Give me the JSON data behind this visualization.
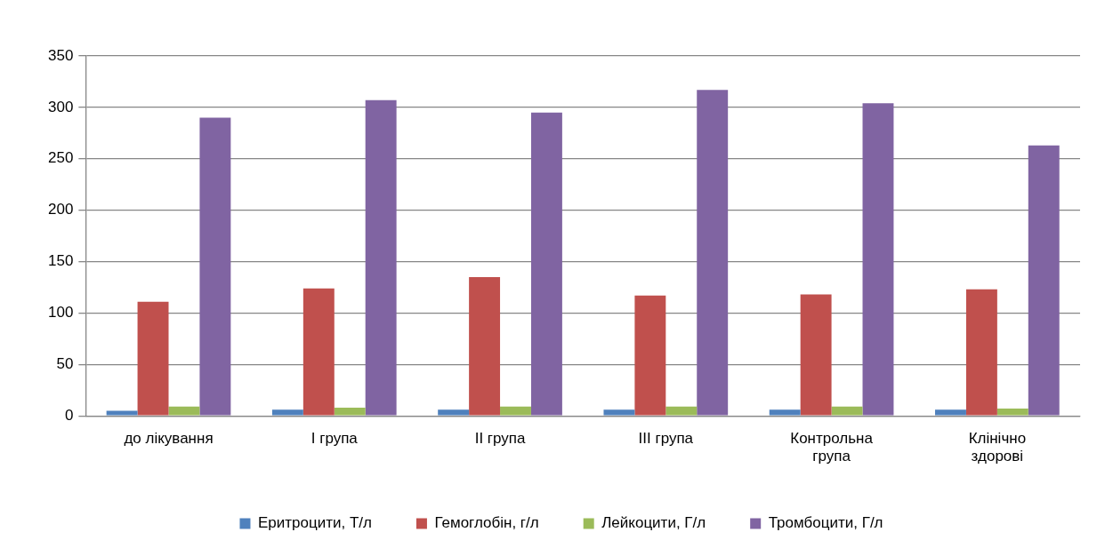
{
  "chart_data": {
    "type": "bar",
    "categories": [
      "до лікування",
      "I група",
      "II група",
      "III група",
      "Контрольна група",
      "Клінічно здорові"
    ],
    "series": [
      {
        "name": "Еритроцити, Т/л",
        "color": "#4f81bd",
        "values": [
          5,
          6,
          6,
          6,
          6,
          6
        ]
      },
      {
        "name": "Гемоглобін, г/л",
        "color": "#c0504d",
        "values": [
          111,
          124,
          135,
          117,
          118,
          123
        ]
      },
      {
        "name": "Лейкоцити, Г/л",
        "color": "#9bbb59",
        "values": [
          9,
          8,
          9,
          9,
          9,
          7
        ]
      },
      {
        "name": "Тромбоцити, Г/л",
        "color": "#8064a2",
        "values": [
          290,
          307,
          295,
          317,
          304,
          263
        ]
      }
    ],
    "ylim": [
      0,
      350
    ],
    "yticks": [
      0,
      50,
      100,
      150,
      200,
      250,
      300,
      350
    ],
    "grid": "y",
    "legend": "bottom"
  }
}
